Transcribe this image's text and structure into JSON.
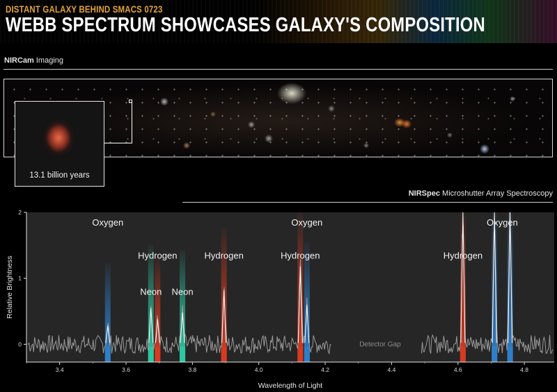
{
  "header": {
    "kicker": "DISTANT GALAXY BEHIND SMACS 0723",
    "title": "WEBB SPECTRUM SHOWCASES GALAXY'S COMPOSITION"
  },
  "imaging": {
    "instrument": "NIRCam",
    "label": "Imaging",
    "inset_caption": "13.1 billion years"
  },
  "spectroscopy": {
    "instrument": "NIRSpec",
    "label": "Microshutter Array Spectroscopy"
  },
  "colors": {
    "oxygen": "#2f7fc9",
    "hydrogen": "#d63b22",
    "neon": "#2ec9a3",
    "spectrum": "#9a9a9a",
    "plot_bg": "#262626"
  },
  "chart_data": {
    "type": "line",
    "xlabel": "Wavelength of Light",
    "ylabel": "Relative Brightness",
    "xlim": [
      3.3,
      4.89
    ],
    "ylim": [
      -0.27,
      2
    ],
    "x_ticks": [
      "3.4",
      "3.6",
      "3.8",
      "4.0",
      "4.2",
      "4.4",
      "4.6",
      "4.8"
    ],
    "y_ticks": [
      "0",
      "1",
      "2"
    ],
    "detector_gap": {
      "label": "Detector Gap",
      "from": 4.22,
      "to": 4.49
    },
    "lines": [
      {
        "element": "Oxygen",
        "wavelength": 3.545,
        "peak": 0.28
      },
      {
        "element": "Neon",
        "wavelength": 3.675,
        "peak": 0.55
      },
      {
        "element": "Hydrogen",
        "wavelength": 3.695,
        "peak": 0.38
      },
      {
        "element": "Neon",
        "wavelength": 3.77,
        "peak": 0.48
      },
      {
        "element": "Hydrogen",
        "wavelength": 3.895,
        "peak": 0.82
      },
      {
        "element": "Hydrogen",
        "wavelength": 4.125,
        "peak": 1.18
      },
      {
        "element": "Oxygen",
        "wavelength": 4.145,
        "peak": 0.6
      },
      {
        "element": "Hydrogen",
        "wavelength": 4.615,
        "peak": 2.0
      },
      {
        "element": "Oxygen",
        "wavelength": 4.71,
        "peak": 2.0
      },
      {
        "element": "Oxygen",
        "wavelength": 4.757,
        "peak": 2.0
      }
    ]
  }
}
